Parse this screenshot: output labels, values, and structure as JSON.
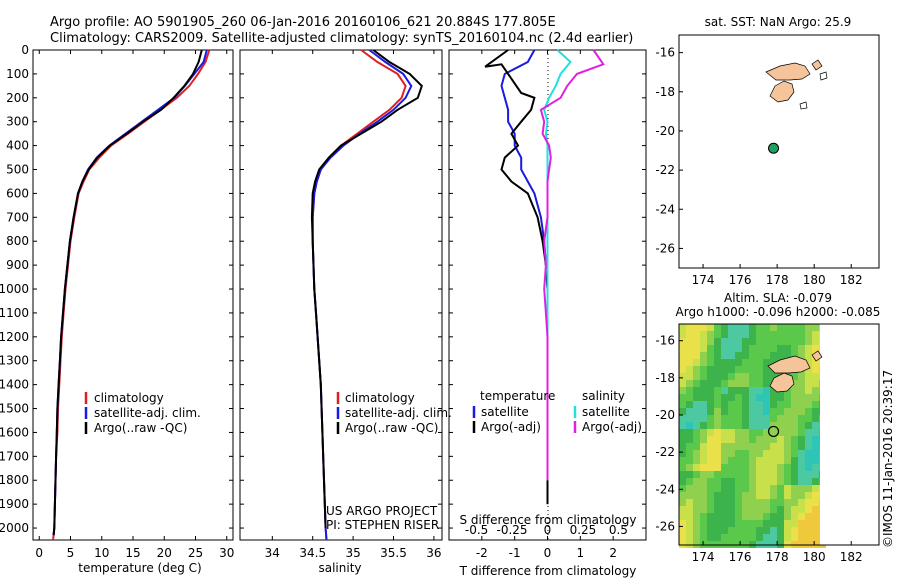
{
  "header": {
    "line1": "Argo profile: AO 5901905_260 06-Jan-2016 20160106_621 20.884S 177.805E",
    "line2": "Climatology: CARS2009. Satellite-adjusted climatology: synTS_20160104.nc (2.4d earlier)"
  },
  "side_label": "©IMOS 11-Jan-2016 20:39:17",
  "colors": {
    "climatology": "#e02020",
    "satellite": "#1a1ae0",
    "argo": "#000000",
    "sat_salinity": "#20e0e0",
    "argo_salinity": "#e020e0",
    "land": "#f5c49a",
    "ocean": "#3cb44b"
  },
  "chart_data": [
    {
      "type": "line",
      "xlabel": "temperature (deg C)",
      "xlim": [
        -1,
        31
      ],
      "ylim": [
        0,
        2050
      ],
      "xticks": [
        "0",
        "5",
        "10",
        "15",
        "20",
        "25",
        "30"
      ],
      "yticks": [
        "0",
        "100",
        "200",
        "300",
        "400",
        "500",
        "600",
        "700",
        "800",
        "900",
        "1000",
        "1100",
        "1200",
        "1300",
        "1400",
        "1500",
        "1600",
        "1700",
        "1800",
        "1900",
        "2000"
      ],
      "legend": [
        "climatology",
        "satellite-adj. clim.",
        "Argo(..raw -QC)"
      ],
      "series": [
        {
          "name": "climatology",
          "x": [
            27.2,
            26.6,
            25.4,
            24.0,
            22.0,
            19.4,
            16.8,
            14.2,
            11.5,
            9.6,
            8.0,
            7.1,
            6.3,
            5.6,
            5.0,
            4.6,
            4.2,
            3.9,
            3.6,
            3.4,
            3.2,
            3.0,
            2.9,
            2.7,
            2.6,
            2.5,
            2.4,
            2.3,
            2.2
          ],
          "y": [
            0,
            50,
            100,
            150,
            200,
            250,
            300,
            350,
            400,
            450,
            500,
            550,
            600,
            700,
            800,
            900,
            1000,
            1100,
            1200,
            1300,
            1400,
            1500,
            1600,
            1700,
            1800,
            1900,
            2000,
            2030,
            2050
          ]
        },
        {
          "name": "satellite-adj. clim.",
          "x": [
            26.8,
            26.3,
            24.8,
            23.3,
            21.6,
            19.0,
            16.4,
            13.8,
            11.2,
            9.2,
            7.8,
            6.9,
            6.2,
            5.5,
            4.9,
            4.5,
            4.1,
            3.8,
            3.5,
            3.3,
            3.1,
            2.9,
            2.8,
            2.7,
            2.6,
            2.5,
            2.4,
            2.3
          ],
          "y": [
            0,
            50,
            100,
            150,
            200,
            250,
            300,
            350,
            400,
            450,
            500,
            550,
            600,
            700,
            800,
            900,
            1000,
            1100,
            1200,
            1300,
            1400,
            1500,
            1600,
            1700,
            1800,
            1900,
            2000,
            2030
          ]
        },
        {
          "name": "Argo(..raw -QC)",
          "x": [
            26.0,
            25.5,
            24.6,
            23.2,
            21.5,
            19.5,
            16.6,
            14.0,
            11.3,
            9.3,
            7.9,
            6.9,
            6.2,
            5.5,
            4.9,
            4.5,
            4.1,
            3.8,
            3.5,
            3.3,
            3.1,
            2.9,
            2.8,
            2.7,
            2.6,
            2.5,
            2.4,
            2.3
          ],
          "y": [
            0,
            50,
            100,
            150,
            200,
            250,
            300,
            350,
            400,
            450,
            500,
            550,
            600,
            700,
            800,
            900,
            1000,
            1100,
            1200,
            1300,
            1400,
            1500,
            1600,
            1700,
            1800,
            1900,
            2000,
            2030
          ]
        }
      ]
    },
    {
      "type": "line",
      "xlabel": "salinity",
      "xlim": [
        33.6,
        36.1
      ],
      "ylim": [
        0,
        2050
      ],
      "xticks": [
        "34",
        "34.5",
        "35",
        "35.5",
        "36"
      ],
      "legend": [
        "climatology",
        "satellite-adj. clim.",
        "Argo(..raw -QC)"
      ],
      "labels": [
        "US ARGO PROJECT",
        "PI: STEPHEN RISER"
      ],
      "series": [
        {
          "name": "climatology",
          "x": [
            35.1,
            35.3,
            35.55,
            35.65,
            35.6,
            35.45,
            35.25,
            35.05,
            34.85,
            34.7,
            34.6,
            34.55,
            34.52,
            34.5,
            34.5,
            34.51,
            34.52,
            34.54,
            34.56,
            34.58,
            34.6,
            34.61,
            34.62,
            34.63,
            34.64,
            34.65,
            34.66,
            34.67
          ],
          "y": [
            0,
            50,
            100,
            150,
            200,
            250,
            300,
            350,
            400,
            450,
            500,
            550,
            600,
            700,
            800,
            900,
            1000,
            1100,
            1200,
            1300,
            1400,
            1500,
            1600,
            1700,
            1800,
            1900,
            2000,
            2050
          ]
        },
        {
          "name": "satellite-adj. clim.",
          "x": [
            35.2,
            35.4,
            35.62,
            35.72,
            35.65,
            35.5,
            35.3,
            35.08,
            34.88,
            34.72,
            34.6,
            34.55,
            34.52,
            34.5,
            34.5,
            34.51,
            34.52,
            34.54,
            34.56,
            34.58,
            34.6,
            34.61,
            34.62,
            34.63,
            34.64,
            34.65,
            34.66,
            34.67
          ],
          "y": [
            0,
            50,
            100,
            150,
            200,
            250,
            300,
            350,
            400,
            450,
            500,
            550,
            600,
            700,
            800,
            900,
            1000,
            1100,
            1200,
            1300,
            1400,
            1500,
            1600,
            1700,
            1800,
            1900,
            2000,
            2050
          ]
        },
        {
          "name": "Argo(..raw -QC)",
          "x": [
            35.25,
            35.45,
            35.7,
            35.85,
            35.8,
            35.55,
            35.35,
            35.1,
            34.85,
            34.7,
            34.58,
            34.53,
            34.5,
            34.49,
            34.5,
            34.51,
            34.52,
            34.54,
            34.56,
            34.58,
            34.6,
            34.61,
            34.62,
            34.63,
            34.64,
            34.65,
            34.66
          ],
          "y": [
            0,
            50,
            100,
            150,
            200,
            250,
            300,
            350,
            400,
            450,
            500,
            550,
            600,
            700,
            800,
            900,
            1000,
            1100,
            1200,
            1300,
            1400,
            1500,
            1600,
            1700,
            1800,
            1900,
            2000
          ]
        }
      ]
    },
    {
      "type": "line",
      "xlabel": "T difference from climatology",
      "top_label": "S difference from climatology",
      "xlim": [
        -3,
        3
      ],
      "ylim": [
        0,
        2050
      ],
      "xticks": [
        "-2",
        "-1",
        "0",
        "1",
        "2"
      ],
      "top_ticks": [
        "-0.5",
        "-0.25",
        "0",
        "0.25",
        "0.5"
      ],
      "legend_headers": [
        "temperature",
        "salinity"
      ],
      "legend": [
        "satellite",
        "Argo(-adj)",
        "satellite",
        "Argo(-adj)"
      ],
      "series": [
        {
          "name": "satellite",
          "x": [
            -0.4,
            -0.6,
            -1.3,
            -1.4,
            -1.3,
            -1.2,
            -1.2,
            -1.0,
            -1.0,
            -0.8,
            -0.8,
            -0.6,
            -0.4,
            -0.2,
            -0.1,
            -0.05,
            0,
            0,
            0,
            0,
            0,
            0,
            0,
            0,
            0,
            0
          ],
          "y": [
            0,
            50,
            100,
            150,
            200,
            250,
            300,
            350,
            400,
            450,
            500,
            550,
            600,
            700,
            800,
            900,
            1000,
            1100,
            1200,
            1300,
            1400,
            1500,
            1600,
            1700,
            1800,
            1900
          ]
        },
        {
          "name": "Argo(-adj)",
          "x": [
            -1.2,
            -1.9,
            -1.4,
            -0.8,
            -0.4,
            -0.5,
            -0.8,
            -1.1,
            -0.9,
            -1.3,
            -1.4,
            -1.1,
            -0.6,
            -0.3,
            -0.15,
            -0.05,
            0,
            0,
            0,
            0,
            0,
            0,
            0,
            0,
            0,
            0
          ],
          "y": [
            0,
            70,
            60,
            180,
            200,
            250,
            300,
            350,
            400,
            450,
            500,
            550,
            600,
            700,
            800,
            900,
            1000,
            1100,
            1200,
            1300,
            1400,
            1500,
            1600,
            1700,
            1800,
            1900
          ]
        },
        {
          "name": "satellite",
          "x": [
            0.3,
            0.7,
            0.4,
            0.25,
            0.05,
            -0.1,
            0,
            -0.05,
            0,
            0,
            0,
            0,
            0,
            0,
            0,
            0,
            0,
            0,
            0,
            0,
            0,
            0,
            0,
            0,
            0
          ],
          "y": [
            0,
            50,
            100,
            150,
            200,
            250,
            300,
            350,
            400,
            450,
            500,
            550,
            600,
            700,
            800,
            900,
            1000,
            1100,
            1200,
            1300,
            1400,
            1500,
            1600,
            1700,
            1800
          ]
        },
        {
          "name": "Argo(-adj)",
          "x": [
            1.4,
            1.7,
            0.9,
            0.6,
            0.4,
            -0.2,
            -0.1,
            -0.15,
            0.05,
            0.1,
            0.05,
            0,
            0,
            0,
            -0.1,
            -0.05,
            -0.1,
            -0.05,
            0,
            0,
            0,
            0,
            0,
            0,
            0
          ],
          "y": [
            0,
            60,
            100,
            150,
            200,
            250,
            300,
            350,
            400,
            450,
            500,
            550,
            600,
            700,
            800,
            900,
            1000,
            1100,
            1200,
            1300,
            1400,
            1500,
            1600,
            1700,
            1800
          ]
        }
      ]
    },
    {
      "type": "map",
      "title": "sat. SST: NaN Argo: 25.9",
      "lon_range": [
        172.7,
        183.5
      ],
      "lat_range": [
        -27,
        -15.1
      ],
      "xticks": [
        "174",
        "176",
        "178",
        "180",
        "182"
      ],
      "yticks": [
        "-16",
        "-18",
        "-20",
        "-22",
        "-24",
        "-26"
      ],
      "point": {
        "lon": 177.805,
        "lat": -20.884
      }
    },
    {
      "type": "heatmap",
      "title_line1": "Altim. SLA: -0.079",
      "title_line2": "Argo h1000: -0.096 h2000: -0.085",
      "lon_range": [
        172.7,
        183.5
      ],
      "lat_range": [
        -27,
        -15.1
      ],
      "xticks": [
        "174",
        "176",
        "178",
        "180",
        "182"
      ],
      "yticks": [
        "-16",
        "-18",
        "-20",
        "-22",
        "-24",
        "-26"
      ],
      "point": {
        "lon": 177.805,
        "lat": -20.884
      }
    }
  ]
}
